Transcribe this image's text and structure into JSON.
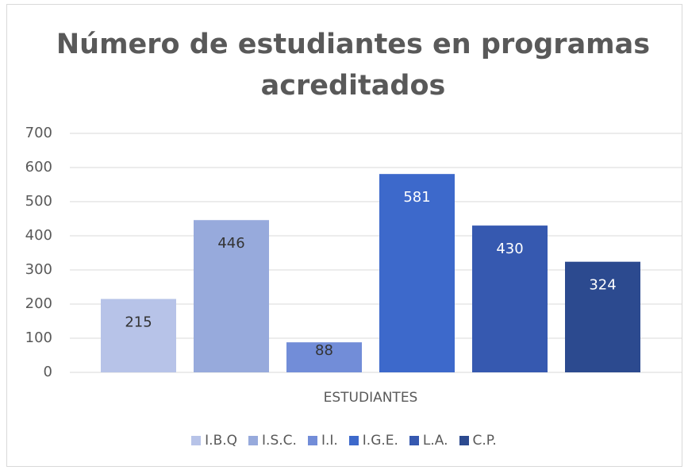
{
  "chart_data": {
    "type": "bar",
    "title": "Número de estudiantes en programas acreditados",
    "categories": [
      "ESTUDIANTES"
    ],
    "series": [
      {
        "name": "I.B.Q",
        "color": "#b7c3e8",
        "values": [
          215
        ]
      },
      {
        "name": "I.S.C.",
        "color": "#97aadc",
        "values": [
          446
        ]
      },
      {
        "name": "I.I.",
        "color": "#728dd8",
        "values": [
          88
        ]
      },
      {
        "name": "I.G.E.",
        "color": "#3d69cb",
        "values": [
          581
        ]
      },
      {
        "name": "L.A.",
        "color": "#3659b0",
        "values": [
          430
        ]
      },
      {
        "name": "C.P.",
        "color": "#2c4a8f",
        "values": [
          324
        ]
      }
    ],
    "ylim": [
      0,
      700
    ],
    "yticks": [
      0,
      100,
      200,
      300,
      400,
      500,
      600,
      700
    ],
    "grid": true,
    "legend": "bottom"
  }
}
